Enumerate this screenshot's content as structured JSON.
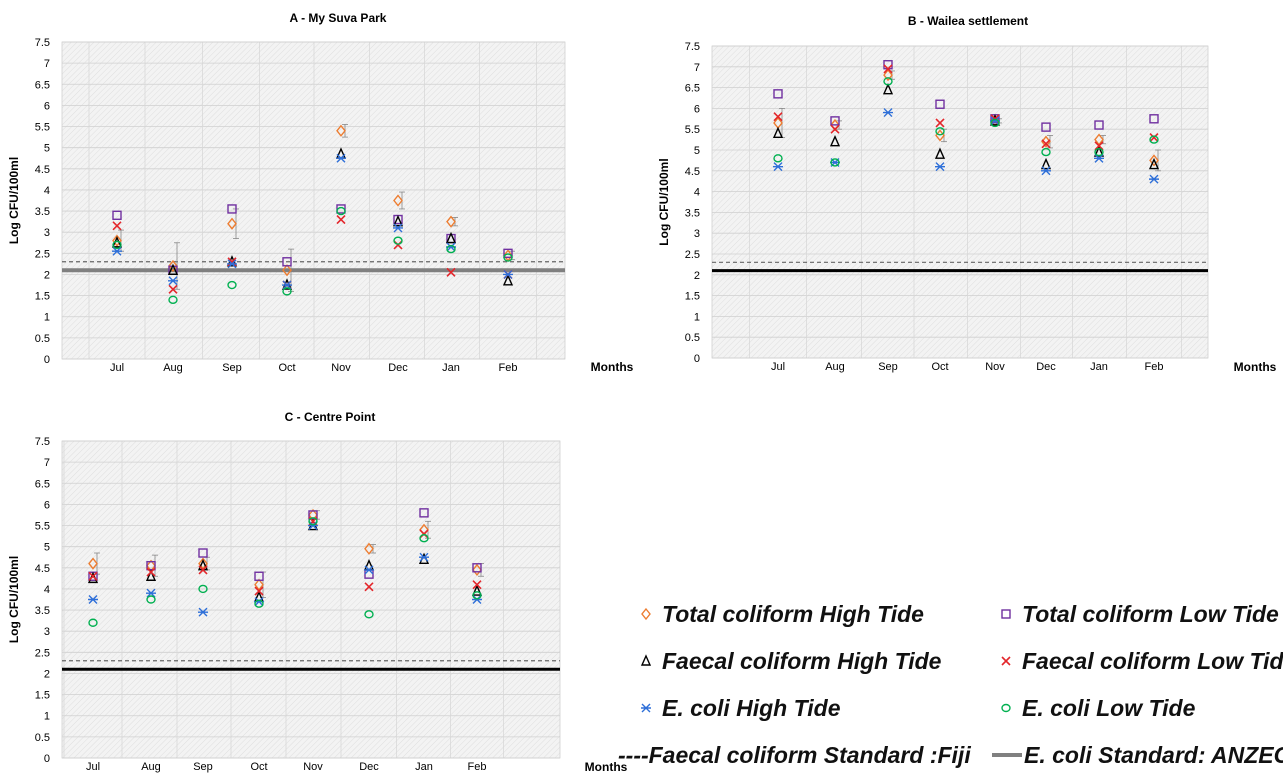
{
  "legend": [
    {
      "label": "Total coliform High Tide",
      "marker": "diamond",
      "color": "#ED7D31"
    },
    {
      "label": "Total coliform Low Tide",
      "marker": "square",
      "color": "#7030A0"
    },
    {
      "label": "Faecal coliform High Tide",
      "marker": "triangle",
      "color": "#000000"
    },
    {
      "label": "Faecal coliform Low Tide",
      "marker": "x",
      "color": "#E3262B"
    },
    {
      "label": "E. coli High Tide",
      "marker": "star",
      "color": "#2E6FD8"
    },
    {
      "label": "E. coli Low Tide",
      "marker": "circle",
      "color": "#00B050"
    },
    {
      "label": "----Faecal coliform Standard :Fiji",
      "marker": "dashed-line",
      "color": "#666666"
    },
    {
      "label": "E. coli Standard: ANZECC",
      "marker": "solid-line",
      "color": "#808080"
    }
  ],
  "chart_data": [
    {
      "type": "scatter",
      "title": "A - My Suva Park",
      "xlabel": "Months",
      "ylabel": "Log CFU/100ml",
      "categories": [
        "Jul",
        "Aug",
        "Sep",
        "Oct",
        "Nov",
        "Dec",
        "Jan",
        "Feb"
      ],
      "ylim": [
        0,
        7.5
      ],
      "yticks": [
        "0",
        "0.5",
        "1",
        "1.5",
        "2",
        "2.5",
        "3",
        "3.5",
        "4",
        "4.5",
        "5",
        "5.5",
        "6",
        "6.5",
        "7",
        "7.5"
      ],
      "grid": true,
      "series": [
        {
          "name": "Total coliform High Tide",
          "marker": "diamond",
          "color": "#ED7D31",
          "values": [
            2.8,
            2.2,
            3.2,
            2.1,
            5.4,
            3.75,
            3.25,
            2.45
          ]
        },
        {
          "name": "Total coliform Low Tide",
          "marker": "square",
          "color": "#7030A0",
          "values": [
            3.4,
            2.1,
            3.55,
            2.3,
            3.55,
            3.3,
            2.85,
            2.5
          ]
        },
        {
          "name": "Faecal coliform High Tide",
          "marker": "triangle",
          "color": "#000000",
          "values": [
            2.75,
            2.1,
            2.3,
            1.75,
            4.85,
            3.25,
            2.85,
            1.85
          ]
        },
        {
          "name": "Faecal coliform Low Tide",
          "marker": "x",
          "color": "#E3262B",
          "values": [
            3.15,
            1.65,
            2.3,
            1.75,
            3.3,
            2.7,
            2.05,
            2.0
          ]
        },
        {
          "name": "E. coli High Tide",
          "marker": "star",
          "color": "#2E6FD8",
          "values": [
            2.55,
            1.85,
            2.25,
            1.75,
            4.75,
            3.1,
            2.65,
            2.0
          ]
        },
        {
          "name": "E. coli Low Tide",
          "marker": "circle",
          "color": "#00B050",
          "values": [
            2.7,
            1.4,
            1.75,
            1.6,
            3.5,
            2.8,
            2.6,
            2.4
          ]
        }
      ],
      "errors": [
        0.25,
        0.55,
        0.35,
        0.5,
        0.15,
        0.2,
        0.1,
        0.1
      ],
      "standards": {
        "faecal_fiji": 2.3,
        "ecoli_anzecc": 2.1
      }
    },
    {
      "type": "scatter",
      "title": "B - Wailea settlement",
      "xlabel": "Months",
      "ylabel": "Log CFU/100ml",
      "categories": [
        "Jul",
        "Aug",
        "Sep",
        "Oct",
        "Nov",
        "Dec",
        "Jan",
        "Feb"
      ],
      "ylim": [
        0,
        7.5
      ],
      "yticks": [
        "0",
        "0.5",
        "1",
        "1.5",
        "2",
        "2.5",
        "3",
        "3.5",
        "4",
        "4.5",
        "5",
        "5.5",
        "6",
        "6.5",
        "7",
        "7.5"
      ],
      "grid": true,
      "series": [
        {
          "name": "Total coliform High Tide",
          "marker": "diamond",
          "color": "#ED7D31",
          "values": [
            5.65,
            5.6,
            6.8,
            5.35,
            5.7,
            5.2,
            5.25,
            4.75
          ]
        },
        {
          "name": "Total coliform Low Tide",
          "marker": "square",
          "color": "#7030A0",
          "values": [
            6.35,
            5.7,
            7.05,
            6.1,
            5.75,
            5.55,
            5.6,
            5.75
          ]
        },
        {
          "name": "Faecal coliform High Tide",
          "marker": "triangle",
          "color": "#000000",
          "values": [
            5.4,
            5.2,
            6.45,
            4.9,
            5.7,
            4.65,
            4.95,
            4.65
          ]
        },
        {
          "name": "Faecal coliform Low Tide",
          "marker": "x",
          "color": "#E3262B",
          "values": [
            5.8,
            5.5,
            6.95,
            5.65,
            5.75,
            5.15,
            5.1,
            5.3
          ]
        },
        {
          "name": "E. coli High Tide",
          "marker": "star",
          "color": "#2E6FD8",
          "values": [
            4.6,
            4.7,
            5.9,
            4.6,
            5.7,
            4.5,
            4.8,
            4.3
          ]
        },
        {
          "name": "E. coli Low Tide",
          "marker": "circle",
          "color": "#00B050",
          "values": [
            4.8,
            4.7,
            6.65,
            5.45,
            5.65,
            4.95,
            4.95,
            5.25
          ]
        }
      ],
      "errors": [
        0.35,
        0.1,
        0.1,
        0.15,
        0.05,
        0.15,
        0.1,
        0.25
      ],
      "standards": {
        "faecal_fiji": 2.3,
        "ecoli_anzecc": 2.1
      }
    },
    {
      "type": "scatter",
      "title": "C - Centre Point",
      "xlabel": "Months",
      "ylabel": "Log CFU/100ml",
      "categories": [
        "Jul",
        "Aug",
        "Sep",
        "Oct",
        "Nov",
        "Dec",
        "Jan",
        "Feb"
      ],
      "ylim": [
        0,
        7.5
      ],
      "yticks": [
        "0",
        "0.5",
        "1",
        "1.5",
        "2",
        "2.5",
        "3",
        "3.5",
        "4",
        "4.5",
        "5",
        "5.5",
        "6",
        "6.5",
        "7",
        "7.5"
      ],
      "grid": true,
      "series": [
        {
          "name": "Total coliform High Tide",
          "marker": "diamond",
          "color": "#ED7D31",
          "values": [
            4.6,
            4.55,
            4.6,
            4.1,
            5.75,
            4.95,
            5.4,
            4.45
          ]
        },
        {
          "name": "Total coliform Low Tide",
          "marker": "square",
          "color": "#7030A0",
          "values": [
            4.3,
            4.55,
            4.85,
            4.3,
            5.75,
            4.35,
            5.8,
            4.5
          ]
        },
        {
          "name": "Faecal coliform High Tide",
          "marker": "triangle",
          "color": "#000000",
          "values": [
            4.25,
            4.3,
            4.55,
            3.8,
            5.5,
            4.55,
            4.7,
            3.95
          ]
        },
        {
          "name": "Faecal coliform Low Tide",
          "marker": "x",
          "color": "#E3262B",
          "values": [
            4.3,
            4.4,
            4.45,
            3.95,
            5.6,
            4.05,
            5.3,
            4.1
          ]
        },
        {
          "name": "E. coli High Tide",
          "marker": "star",
          "color": "#2E6FD8",
          "values": [
            3.75,
            3.9,
            3.45,
            3.7,
            5.5,
            4.45,
            4.75,
            3.75
          ]
        },
        {
          "name": "E. coli Low Tide",
          "marker": "circle",
          "color": "#00B050",
          "values": [
            3.2,
            3.75,
            4.0,
            3.65,
            5.6,
            3.4,
            5.2,
            3.85
          ]
        }
      ],
      "errors": [
        0.25,
        0.25,
        0.15,
        0.3,
        0.1,
        0.1,
        0.2,
        0.15
      ],
      "standards": {
        "faecal_fiji": 2.3,
        "ecoli_anzecc": 2.1
      }
    }
  ]
}
